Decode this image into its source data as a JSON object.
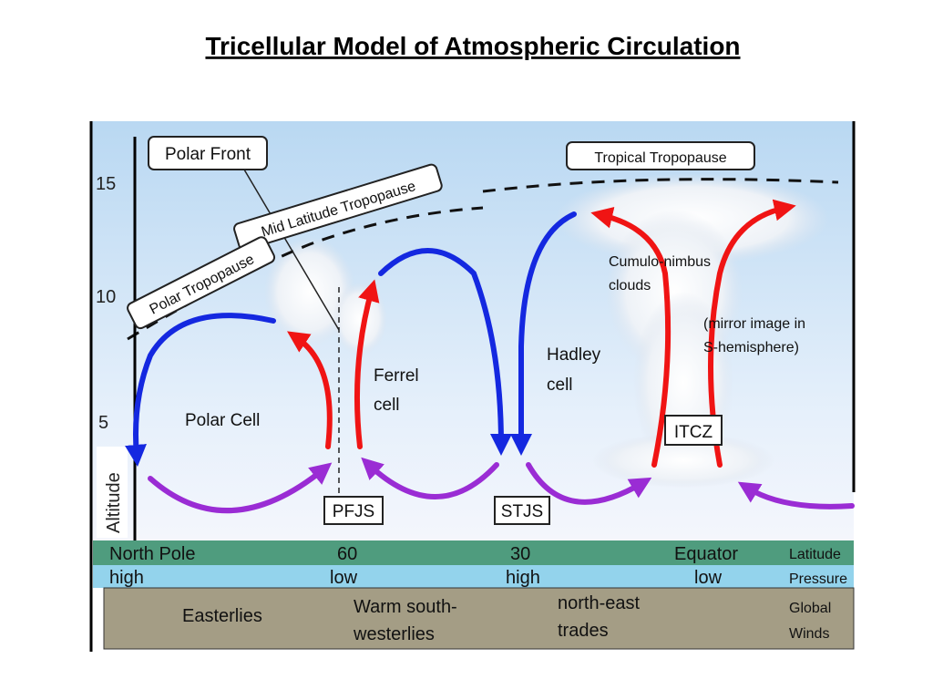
{
  "title": "Tricellular Model of Atmospheric Circulation",
  "axis": {
    "label": "Altitude",
    "ticks": [
      "15",
      "10",
      "5"
    ]
  },
  "labels": {
    "polar_front": "Polar Front",
    "tropical_tropopause": "Tropical Tropopause",
    "mid_latitude_tropopause": "Mid Latitude Tropopause",
    "polar_tropopause": "Polar Tropopause",
    "clouds": [
      "Cumulo-nimbus",
      "clouds"
    ],
    "mirror": [
      "(mirror image in",
      "S-hemisphere)"
    ],
    "hadley": [
      "Hadley",
      "cell"
    ],
    "ferrel": [
      "Ferrel",
      "cell"
    ],
    "polar_cell": "Polar Cell",
    "itcz": "ITCZ",
    "pfjs": "PFJS",
    "stjs": "STJS"
  },
  "latitude": [
    "North Pole",
    "60",
    "30",
    "Equator",
    "Latitude"
  ],
  "pressure": [
    "high",
    "low",
    "high",
    "low",
    "Pressure"
  ],
  "winds": [
    [
      "Easterlies"
    ],
    [
      "Warm south-",
      "westerlies"
    ],
    [
      "north-east",
      "trades"
    ],
    [
      "Global",
      "Winds"
    ]
  ]
}
